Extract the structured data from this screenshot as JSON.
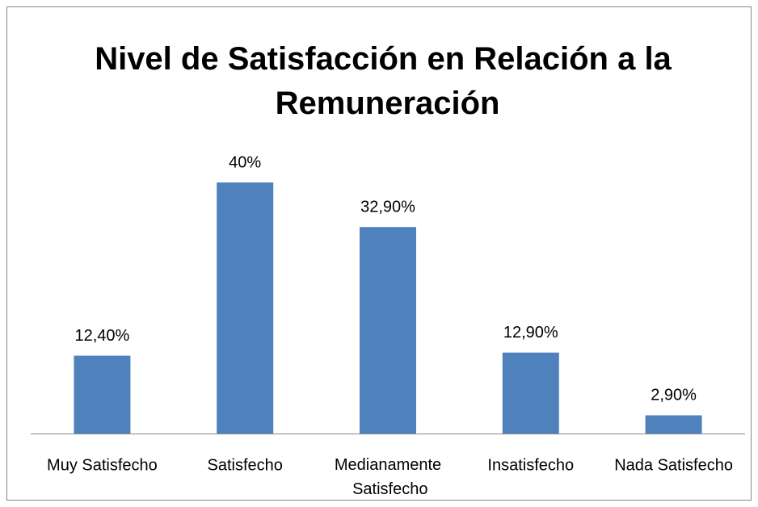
{
  "chart_data": {
    "type": "bar",
    "title": "Nivel de Satisfacción en Relación a la Remuneración",
    "categories": [
      "Muy Satisfecho",
      "Satisfecho",
      "Medianamente Satisfecho",
      "Insatisfecho",
      "Nada Satisfecho"
    ],
    "values": [
      12.4,
      40,
      32.9,
      12.9,
      2.9
    ],
    "value_labels": [
      "12,40%",
      "40%",
      "32,90%",
      "12,90%",
      "2,90%"
    ],
    "color": "#4f81bd"
  }
}
